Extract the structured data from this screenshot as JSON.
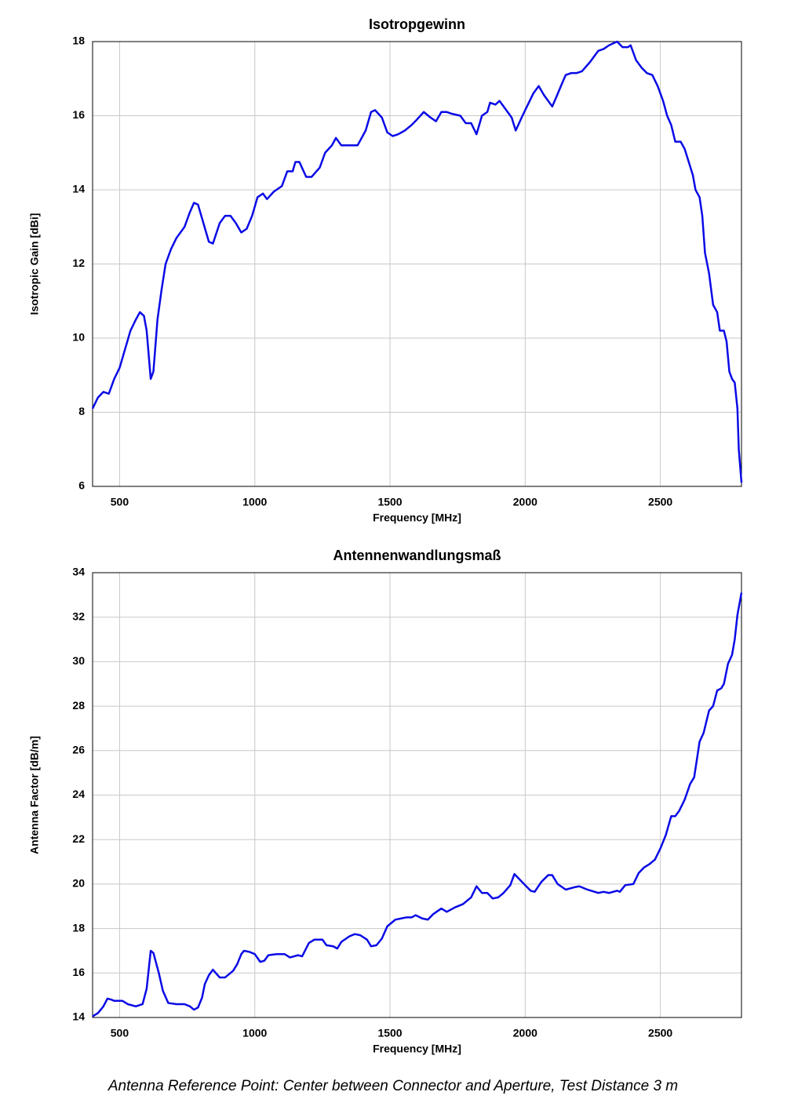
{
  "chart_data": [
    {
      "type": "line",
      "title": "Isotropgewinn",
      "xlabel": "Frequency [MHz]",
      "ylabel": "Isotropic Gain [dBi]",
      "color": "#0a0ae6",
      "xlim": [
        400,
        2800
      ],
      "xticks": [
        500,
        1000,
        1500,
        2000,
        2500
      ],
      "ylim": [
        6,
        18
      ],
      "yticks": [
        6,
        8,
        10,
        12,
        14,
        16,
        18
      ],
      "grid": true,
      "x": [
        400,
        420,
        440,
        460,
        480,
        500,
        520,
        540,
        560,
        575,
        590,
        600,
        615,
        625,
        640,
        655,
        670,
        690,
        710,
        740,
        760,
        775,
        790,
        810,
        830,
        845,
        870,
        890,
        910,
        930,
        950,
        970,
        990,
        1010,
        1030,
        1045,
        1070,
        1100,
        1120,
        1140,
        1150,
        1165,
        1190,
        1210,
        1240,
        1260,
        1285,
        1300,
        1320,
        1350,
        1380,
        1410,
        1430,
        1445,
        1470,
        1490,
        1510,
        1530,
        1555,
        1580,
        1600,
        1625,
        1650,
        1670,
        1690,
        1710,
        1730,
        1760,
        1780,
        1800,
        1820,
        1840,
        1860,
        1870,
        1890,
        1905,
        1930,
        1950,
        1965,
        1990,
        2010,
        2030,
        2050,
        2070,
        2100,
        2115,
        2135,
        2150,
        2170,
        2190,
        2210,
        2240,
        2270,
        2290,
        2310,
        2340,
        2360,
        2380,
        2390,
        2410,
        2430,
        2450,
        2470,
        2490,
        2510,
        2525,
        2540,
        2555,
        2575,
        2590,
        2605,
        2620,
        2630,
        2645,
        2655,
        2665,
        2680,
        2695,
        2710,
        2720,
        2735,
        2745,
        2755,
        2765,
        2775,
        2785,
        2790,
        2800
      ],
      "values": [
        8.1,
        8.4,
        8.55,
        8.5,
        8.9,
        9.2,
        9.7,
        10.2,
        10.5,
        10.7,
        10.6,
        10.2,
        8.9,
        9.1,
        10.5,
        11.3,
        12.0,
        12.4,
        12.7,
        13.0,
        13.4,
        13.65,
        13.6,
        13.1,
        12.6,
        12.55,
        13.1,
        13.3,
        13.3,
        13.1,
        12.85,
        12.95,
        13.3,
        13.8,
        13.9,
        13.75,
        13.95,
        14.1,
        14.5,
        14.5,
        14.75,
        14.75,
        14.35,
        14.35,
        14.6,
        15.0,
        15.2,
        15.4,
        15.2,
        15.2,
        15.2,
        15.6,
        16.1,
        16.15,
        15.95,
        15.55,
        15.45,
        15.5,
        15.6,
        15.75,
        15.9,
        16.1,
        15.95,
        15.85,
        16.1,
        16.1,
        16.05,
        16.0,
        15.8,
        15.8,
        15.5,
        16.0,
        16.1,
        16.35,
        16.3,
        16.4,
        16.15,
        15.95,
        15.6,
        16.0,
        16.3,
        16.6,
        16.8,
        16.55,
        16.25,
        16.5,
        16.85,
        17.1,
        17.15,
        17.15,
        17.2,
        17.45,
        17.75,
        17.8,
        17.9,
        18.0,
        17.85,
        17.85,
        17.9,
        17.5,
        17.3,
        17.15,
        17.1,
        16.8,
        16.4,
        16.0,
        15.75,
        15.3,
        15.3,
        15.1,
        14.75,
        14.4,
        14.0,
        13.8,
        13.3,
        12.3,
        11.75,
        10.9,
        10.7,
        10.2,
        10.2,
        9.9,
        9.1,
        8.9,
        8.8,
        8.1,
        7.0,
        6.1
      ]
    },
    {
      "type": "line",
      "title": "Antennenwandlungsmaß",
      "xlabel": "Frequency [MHz]",
      "ylabel": "Antenna Factor [dB/m]",
      "color": "#0a0ae6",
      "xlim": [
        400,
        2800
      ],
      "xticks": [
        500,
        1000,
        1500,
        2000,
        2500
      ],
      "ylim": [
        14,
        34
      ],
      "yticks": [
        14,
        16,
        18,
        20,
        22,
        24,
        26,
        28,
        30,
        32,
        34
      ],
      "grid": true,
      "x": [
        400,
        420,
        440,
        455,
        470,
        480,
        510,
        530,
        560,
        585,
        600,
        615,
        625,
        645,
        660,
        680,
        710,
        740,
        760,
        775,
        790,
        805,
        815,
        830,
        845,
        870,
        890,
        920,
        935,
        950,
        960,
        980,
        1000,
        1020,
        1035,
        1050,
        1080,
        1110,
        1130,
        1160,
        1175,
        1200,
        1220,
        1250,
        1265,
        1290,
        1305,
        1320,
        1350,
        1370,
        1390,
        1415,
        1430,
        1450,
        1470,
        1490,
        1520,
        1560,
        1580,
        1595,
        1620,
        1640,
        1660,
        1690,
        1710,
        1740,
        1770,
        1800,
        1820,
        1840,
        1860,
        1880,
        1900,
        1920,
        1945,
        1960,
        1980,
        2000,
        2020,
        2035,
        2060,
        2085,
        2100,
        2120,
        2150,
        2180,
        2200,
        2230,
        2270,
        2290,
        2310,
        2340,
        2350,
        2370,
        2400,
        2420,
        2440,
        2460,
        2480,
        2500,
        2520,
        2540,
        2555,
        2570,
        2590,
        2610,
        2625,
        2645,
        2660,
        2680,
        2695,
        2710,
        2725,
        2735,
        2750,
        2765,
        2775,
        2785,
        2800
      ],
      "values": [
        14.05,
        14.2,
        14.5,
        14.85,
        14.8,
        14.75,
        14.75,
        14.6,
        14.5,
        14.6,
        15.3,
        17.0,
        16.9,
        16.0,
        15.2,
        14.65,
        14.6,
        14.6,
        14.5,
        14.35,
        14.45,
        14.9,
        15.5,
        15.9,
        16.15,
        15.8,
        15.8,
        16.1,
        16.4,
        16.85,
        17.0,
        16.95,
        16.85,
        16.5,
        16.55,
        16.8,
        16.85,
        16.85,
        16.7,
        16.8,
        16.75,
        17.35,
        17.5,
        17.5,
        17.25,
        17.2,
        17.1,
        17.4,
        17.65,
        17.75,
        17.7,
        17.5,
        17.2,
        17.25,
        17.55,
        18.1,
        18.4,
        18.5,
        18.5,
        18.6,
        18.45,
        18.4,
        18.65,
        18.9,
        18.75,
        18.95,
        19.1,
        19.4,
        19.9,
        19.6,
        19.6,
        19.35,
        19.4,
        19.6,
        19.95,
        20.45,
        20.2,
        19.95,
        19.7,
        19.65,
        20.1,
        20.4,
        20.4,
        20.0,
        19.75,
        19.85,
        19.9,
        19.75,
        19.6,
        19.65,
        19.6,
        19.7,
        19.65,
        19.95,
        20.0,
        20.5,
        20.75,
        20.9,
        21.1,
        21.6,
        22.2,
        23.05,
        23.05,
        23.3,
        23.8,
        24.5,
        24.8,
        26.4,
        26.8,
        27.8,
        28.0,
        28.7,
        28.8,
        29.0,
        29.9,
        30.3,
        31.0,
        32.1,
        33.1
      ]
    }
  ],
  "caption": "Antenna Reference Point: Center between Connector and Aperture, Test Distance 3 m"
}
